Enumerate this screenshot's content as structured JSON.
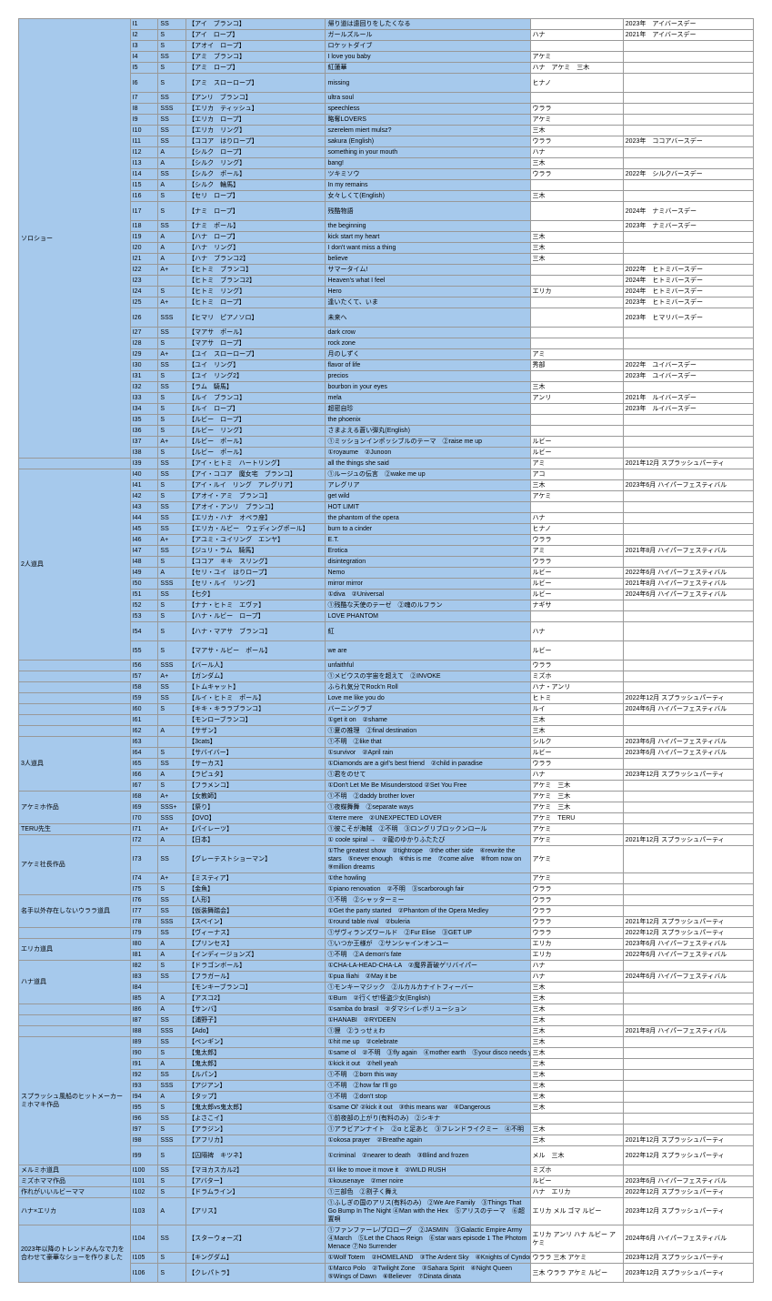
{
  "categories": [
    {
      "name": "ソロショー",
      "start": 0,
      "end": 38,
      "color": "#a6c9ec"
    },
    {
      "name": "2人道具",
      "start": 39,
      "end": 55,
      "color": "#a6c9ec"
    },
    {
      "name": "3人道具",
      "start": 62,
      "end": 67,
      "color": "#a6c9ec"
    },
    {
      "name": "アケミホ作品",
      "start": 67,
      "end": 70,
      "color": "#a6c9ec"
    },
    {
      "name": "TERU先生",
      "start": 70,
      "end": 71,
      "color": "#a6c9ec"
    },
    {
      "name": "アケミ社長作品",
      "start": 71,
      "end": 75,
      "color": "#a6c9ec"
    },
    {
      "name": "名手以外存在しないウララ道具",
      "start": 75,
      "end": 78,
      "color": "#a6c9ec"
    },
    {
      "name": "エリカ道具",
      "start": 79,
      "end": 81,
      "color": "#a6c9ec"
    },
    {
      "name": "ハナ道具",
      "start": 81,
      "end": 85,
      "color": "#a6c9ec"
    },
    {
      "name": "スプラッシュ風船のヒットメーカーミホマキ作品",
      "start": 88,
      "end": 99,
      "color": "#a6c9ec"
    },
    {
      "name": "メルミホ道具",
      "start": 99,
      "end": 100,
      "color": "#a6c9ec"
    },
    {
      "name": "ミズホママ作品",
      "start": 100,
      "end": 101,
      "color": "#a6c9ec"
    },
    {
      "name": "作れがいいルビーママ",
      "start": 101,
      "end": 102,
      "color": "#a6c9ec"
    },
    {
      "name": "ハナ×エリカ",
      "start": 102,
      "end": 103,
      "color": "#a6c9ec"
    },
    {
      "name": "2023年以降のトレンドみんなで力を合わせて豪華なショーを作りました",
      "start": 103,
      "end": 107,
      "color": "#a6c9ec"
    }
  ],
  "rows": [
    {
      "id": "I1",
      "rank": "SS",
      "act": "【アイ　ブランコ】",
      "song": "帰り道は遠回りをしたくなる",
      "perf": "",
      "date": "2023年　アイバースデー"
    },
    {
      "id": "I2",
      "rank": "S",
      "act": "【アイ　ロープ】",
      "song": "ガールズルール",
      "perf": "ハナ",
      "date": "2021年　アイバースデー"
    },
    {
      "id": "I3",
      "rank": "S",
      "act": "【アオイ　ロープ】",
      "song": "ロケットダイブ",
      "perf": "",
      "date": ""
    },
    {
      "id": "I4",
      "rank": "SS",
      "act": "【アミ　ブランコ】",
      "song": "I love you baby",
      "perf": "アケミ",
      "date": ""
    },
    {
      "id": "I5",
      "rank": "S",
      "act": "【アミ　ロープ】",
      "song": "紅蓮華",
      "perf": "ハナ　アケミ　三木",
      "date": ""
    },
    {
      "id": "I6",
      "rank": "S",
      "act": "【アミ　スローロープ】",
      "song": "missing",
      "perf": "ヒナノ",
      "date": "",
      "tall": true
    },
    {
      "id": "I7",
      "rank": "SS",
      "act": "【アンリ　ブランコ】",
      "song": "ultra soul",
      "perf": "",
      "date": ""
    },
    {
      "id": "I8",
      "rank": "SSS",
      "act": "【エリカ　ティッシュ】",
      "song": "speechless",
      "perf": "ウララ",
      "date": ""
    },
    {
      "id": "I9",
      "rank": "SS",
      "act": "【エリカ　ロープ】",
      "song": "略奪LOVERS",
      "perf": "アケミ",
      "date": ""
    },
    {
      "id": "I10",
      "rank": "SS",
      "act": "【エリカ　リング】",
      "song": "szerelem miert mulsz?",
      "perf": "三木",
      "date": ""
    },
    {
      "id": "I11",
      "rank": "SS",
      "act": "【ココア　はりロープ】",
      "song": "sakura (English)",
      "perf": "ウララ",
      "date": "2023年　ココアバースデー"
    },
    {
      "id": "I12",
      "rank": "A",
      "act": "【シルク　ロープ】",
      "song": "something in your mouth",
      "perf": "ハナ",
      "date": ""
    },
    {
      "id": "I13",
      "rank": "A",
      "act": "【シルク　リング】",
      "song": "bang!",
      "perf": "三木",
      "date": ""
    },
    {
      "id": "I14",
      "rank": "SS",
      "act": "【シルク　ポール】",
      "song": "ツキミソウ",
      "perf": "ウララ",
      "date": "2022年　シルクバースデー"
    },
    {
      "id": "I15",
      "rank": "A",
      "act": "【シルク　輪馬】",
      "song": "In my remains",
      "perf": "",
      "date": ""
    },
    {
      "id": "I16",
      "rank": "S",
      "act": "【セリ　ロープ】",
      "song": "女々しくて(English)",
      "perf": "三木",
      "date": ""
    },
    {
      "id": "I17",
      "rank": "S",
      "act": "【ナミ　ロープ】",
      "song": "残酷物語",
      "perf": "",
      "date": "2024年　ナミバースデー",
      "tall": true
    },
    {
      "id": "I18",
      "rank": "SS",
      "act": "【ナミ　ポール】",
      "song": "the beginning",
      "perf": "",
      "date": "2023年　ナミバースデー"
    },
    {
      "id": "I19",
      "rank": "A",
      "act": "【ハナ　ロープ】",
      "song": "kick start my heart",
      "perf": "三木",
      "date": ""
    },
    {
      "id": "I20",
      "rank": "A",
      "act": "【ハナ　リング】",
      "song": "I don't want miss a thing",
      "perf": "三木",
      "date": ""
    },
    {
      "id": "I21",
      "rank": "A",
      "act": "【ハナ　ブランコ2】",
      "song": "believe",
      "perf": "三木",
      "date": ""
    },
    {
      "id": "I22",
      "rank": "A+",
      "act": "【ヒトミ　ブランコ】",
      "song": "サマータイム!",
      "perf": "",
      "date": "2022年　ヒトミバースデー"
    },
    {
      "id": "I23",
      "rank": "",
      "act": "【ヒトミ　ブランコ2】",
      "song": "Heaven's what I feel",
      "perf": "",
      "date": "2024年　ヒトミバースデー"
    },
    {
      "id": "I24",
      "rank": "S",
      "act": "【ヒトミ　リング】",
      "song": "Hero",
      "perf": "エリカ",
      "date": "2024年　ヒトミバースデー"
    },
    {
      "id": "I25",
      "rank": "A+",
      "act": "【ヒトミ　ロープ】",
      "song": "逢いたくて、いま",
      "perf": "",
      "date": "2023年　ヒトミバースデー"
    },
    {
      "id": "I26",
      "rank": "SSS",
      "act": "【ヒマリ　ピアノソロ】",
      "song": "未来へ",
      "perf": "",
      "date": "2023年　ヒマリバースデー",
      "tall": true
    },
    {
      "id": "I27",
      "rank": "SS",
      "act": "【マアサ　ポール】",
      "song": "dark crow",
      "perf": "",
      "date": ""
    },
    {
      "id": "I28",
      "rank": "S",
      "act": "【マアサ　ロープ】",
      "song": "rock zone",
      "perf": "",
      "date": ""
    },
    {
      "id": "I29",
      "rank": "A+",
      "act": "【ユイ　スローロープ】",
      "song": "月のしずく",
      "perf": "アミ",
      "date": ""
    },
    {
      "id": "I30",
      "rank": "SS",
      "act": "【ユイ　リング】",
      "song": "flavor of life",
      "perf": "秀部",
      "date": "2022年　ユイバースデー"
    },
    {
      "id": "I31",
      "rank": "S",
      "act": "【ユイ　リング2】",
      "song": "precios",
      "perf": "",
      "date": "2023年　ユイバースデー"
    },
    {
      "id": "I32",
      "rank": "SS",
      "act": "【ラム　騎馬】",
      "song": "bourbon in your eyes",
      "perf": "三木",
      "date": ""
    },
    {
      "id": "I33",
      "rank": "S",
      "act": "【ルイ　ブランコ】",
      "song": "mela",
      "perf": "アンリ",
      "date": "2021年　ルイバースデー"
    },
    {
      "id": "I34",
      "rank": "S",
      "act": "【ルイ　ロープ】",
      "song": "超密自珍",
      "perf": "",
      "date": "2023年　ルイバースデー"
    },
    {
      "id": "I35",
      "rank": "S",
      "act": "【ルビー　ロープ】",
      "song": "the phoenix",
      "perf": "",
      "date": ""
    },
    {
      "id": "I36",
      "rank": "S",
      "act": "【ルビー　リング】",
      "song": "さまよえる蒼い弾丸(English)",
      "perf": "",
      "date": ""
    },
    {
      "id": "I37",
      "rank": "A+",
      "act": "【ルビー　ポール】",
      "song": "①ミッションインポッシブルのテーマ　②raise me up",
      "perf": "ルビー",
      "date": ""
    },
    {
      "id": "I38",
      "rank": "S",
      "act": "【ルビー　ポール】",
      "song": "①royaume　②Junoon",
      "perf": "ルビー",
      "date": ""
    },
    {
      "id": "I39",
      "rank": "SS",
      "act": "【アイ・ヒトミ　ハートリング】",
      "song": "all the things she said",
      "perf": "アミ",
      "date": "2021年12月 スプラッシュパーティ"
    },
    {
      "id": "I40",
      "rank": "SS",
      "act": "【アイ・ココア　魔女宅　ブランコ】",
      "song": "①ルージュの伝言　②wake me up",
      "perf": "アコ",
      "date": ""
    },
    {
      "id": "I41",
      "rank": "S",
      "act": "【アイ・ルイ　リング　アレグリア】",
      "song": "アレグリア",
      "perf": "三木",
      "date": "2023年6月 ハイパーフェスティバル"
    },
    {
      "id": "I42",
      "rank": "S",
      "act": "【アオイ・アミ　ブランコ】",
      "song": "get wild",
      "perf": "アケミ",
      "date": ""
    },
    {
      "id": "I43",
      "rank": "SS",
      "act": "【アオイ・アンリ　ブランコ】",
      "song": "HOT LIMIT",
      "perf": "",
      "date": ""
    },
    {
      "id": "I44",
      "rank": "SS",
      "act": "【エリカ・ハナ　オペラ座】",
      "song": "the phantom of the opera",
      "perf": "ハナ",
      "date": ""
    },
    {
      "id": "I45",
      "rank": "SS",
      "act": "【エリカ・ルビー　ウェディングポール】",
      "song": "burn to a cinder",
      "perf": "ヒナノ",
      "date": ""
    },
    {
      "id": "I46",
      "rank": "A+",
      "act": "【アユミ・ユイリング　エンヤ】",
      "song": "E.T.",
      "perf": "ウララ",
      "date": ""
    },
    {
      "id": "I47",
      "rank": "SS",
      "act": "【ジュリ・ラム　騎馬】",
      "song": "Erotica",
      "perf": "アミ",
      "date": "2021年8月 ハイパーフェスティバル"
    },
    {
      "id": "I48",
      "rank": "S",
      "act": "【ココア　キキ　スリング】",
      "song": "disintegration",
      "perf": "ウララ",
      "date": ""
    },
    {
      "id": "I49",
      "rank": "A",
      "act": "【セリ・ユイ　はりロープ】",
      "song": "Nemo",
      "perf": "ルビー",
      "date": "2022年6月 ハイパーフェスティバル"
    },
    {
      "id": "I50",
      "rank": "SSS",
      "act": "【セリ・ルイ　リング】",
      "song": "mirror mirror",
      "perf": "ルビー",
      "date": "2021年8月 ハイパーフェスティバル"
    },
    {
      "id": "I51",
      "rank": "SS",
      "act": "【七夕】",
      "song": "①diva　②Universal",
      "perf": "ルビー",
      "date": "2024年6月 ハイパーフェスティバル"
    },
    {
      "id": "I52",
      "rank": "S",
      "act": "【ナナ・ヒトミ　エヴァ】",
      "song": "①残酷な天使のテーゼ　②魂のルフラン",
      "perf": "ナギサ",
      "date": ""
    },
    {
      "id": "I53",
      "rank": "S",
      "act": "【ハナ・ルビー　ロープ】",
      "song": "LOVE PHANTOM",
      "perf": "",
      "date": ""
    },
    {
      "id": "I54",
      "rank": "S",
      "act": "【ハナ・マアサ　ブランコ】",
      "song": "紅",
      "perf": "ハナ",
      "date": "",
      "tall": true
    },
    {
      "id": "I55",
      "rank": "S",
      "act": "【マアサ・ルビー　ポール】",
      "song": "we are",
      "perf": "ルビー",
      "date": "",
      "tall": true
    },
    {
      "id": "I56",
      "rank": "SSS",
      "act": "【バール人】",
      "song": "unfaithful",
      "perf": "ウララ",
      "date": ""
    },
    {
      "id": "I57",
      "rank": "A+",
      "act": "【ガンダム】",
      "song": "①メビウスの宇宙を超えて　②INVOKE",
      "perf": "ミズホ",
      "date": ""
    },
    {
      "id": "I58",
      "rank": "SS",
      "act": "【トムキャット】",
      "song": "ふられ気分でRock'n Roll",
      "perf": "ハナ・アンリ",
      "date": ""
    },
    {
      "id": "I59",
      "rank": "SS",
      "act": "【ルイ・ヒトミ　ポール】",
      "song": "Love me like you do",
      "perf": "ヒトミ",
      "date": "2022年12月 スプラッシュパーティ"
    },
    {
      "id": "I60",
      "rank": "S",
      "act": "【キキ・キララブランコ】",
      "song": "バーニングラブ",
      "perf": "ルイ",
      "date": "2024年6月 ハイパーフェスティバル"
    },
    {
      "id": "I61",
      "rank": "",
      "act": "【モンローブランコ】",
      "song": "①get it on　②shame",
      "perf": "三木",
      "date": ""
    },
    {
      "id": "I62",
      "rank": "A",
      "act": "【サザン】",
      "song": "①夏の推理　②final destination",
      "perf": "三木",
      "date": ""
    },
    {
      "id": "I63",
      "rank": "",
      "act": "【3cats】",
      "song": "①不明　②like that",
      "perf": "シルク",
      "date": "2023年6月 ハイパーフェスティバル"
    },
    {
      "id": "I64",
      "rank": "S",
      "act": "【サバイバー】",
      "song": "①survivor　②April rain",
      "perf": "ルビー",
      "date": "2023年6月 ハイパーフェスティバル"
    },
    {
      "id": "I65",
      "rank": "SS",
      "act": "【サーカス】",
      "song": "①Diamonds are a girl's best friend　②child in paradise",
      "perf": "ウララ",
      "date": ""
    },
    {
      "id": "I66",
      "rank": "A",
      "act": "【ラピュタ】",
      "song": "①君をのせて",
      "perf": "ハナ",
      "date": "2023年12月 スプラッシュパーティ"
    },
    {
      "id": "I67",
      "rank": "S",
      "act": "【フラメンコ】",
      "song": "①Don't Let Me Be Misunderstood ②Set You Free",
      "perf": "アケミ　三木",
      "date": ""
    },
    {
      "id": "I68",
      "rank": "A+",
      "act": "【女教師】",
      "song": "①不明　②daddy brother lover",
      "perf": "アケミ　三木",
      "date": ""
    },
    {
      "id": "I69",
      "rank": "SSS+",
      "act": "【祭り】",
      "song": "①夜蝶舞舞　②separate ways",
      "perf": "アケミ　三木",
      "date": ""
    },
    {
      "id": "I70",
      "rank": "SSS",
      "act": "【OVO】",
      "song": "①terre mere　②UNEXPECTED LOVER",
      "perf": "アケミ　TERU",
      "date": ""
    },
    {
      "id": "I71",
      "rank": "A+",
      "act": "【パイレーツ】",
      "song": "①彼こそが海賊　②不明　③ロングリブロックンロール",
      "perf": "アケミ",
      "date": ""
    },
    {
      "id": "I72",
      "rank": "A",
      "act": "【日本】",
      "song": "① coole spiral →　②龍のゆかりふたたび",
      "perf": "アケミ",
      "date": "2021年12月 スプラッシュパーティ"
    },
    {
      "id": "I73",
      "rank": "SS",
      "act": "【グレーテストショーマン】",
      "song": "①The greatest show　②tightrope　③the other side　④rewrite the stars　⑤never enough　⑥this is me　⑦come alive　⑧from now on　⑨million dreams",
      "perf": "アケミ",
      "date": "",
      "tall": true
    },
    {
      "id": "I74",
      "rank": "A+",
      "act": "【ミスティア】",
      "song": "①the howling",
      "perf": "アケミ",
      "date": ""
    },
    {
      "id": "I75",
      "rank": "S",
      "act": "【金魚】",
      "song": "①piano renovation　②不明　③scarborough fair",
      "perf": "ウララ",
      "date": ""
    },
    {
      "id": "I76",
      "rank": "SS",
      "act": "【人形】",
      "song": "①不明　②シャッターミー",
      "perf": "ウララ",
      "date": ""
    },
    {
      "id": "I77",
      "rank": "SS",
      "act": "【仮装舞踏会】",
      "song": "①Get the party started　②Phantom of the Opera Medley",
      "perf": "ウララ",
      "date": ""
    },
    {
      "id": "I78",
      "rank": "SSS",
      "act": "【スペイン】",
      "song": "①round table rival　②buleria",
      "perf": "ウララ",
      "date": "2021年12月 スプラッシュパーティ"
    },
    {
      "id": "I79",
      "rank": "SS",
      "act": "【ヴィーナス】",
      "song": "①ザヴィランズワールド　②Fur Elise　③GET UP",
      "perf": "ウララ",
      "date": "2022年12月 スプラッシュパーティ"
    },
    {
      "id": "I80",
      "rank": "A",
      "act": "【プリンセス】",
      "song": "①いつか王様が　②サンシャインオンユー",
      "perf": "エリカ",
      "date": "2023年6月 ハイパーフェスティバル"
    },
    {
      "id": "I81",
      "rank": "A",
      "act": "【インディージョンズ】",
      "song": "①不明　②A demon's fate",
      "perf": "エリカ",
      "date": "2022年6月 ハイパーフェスティバル"
    },
    {
      "id": "I82",
      "rank": "S",
      "act": "【ドラゴンボール】",
      "song": "①CHA-LA-HEAD-CHA-LA　②魔界蒼破ゲリバイパー",
      "perf": "ハナ",
      "date": ""
    },
    {
      "id": "I83",
      "rank": "SS",
      "act": "【フラガール】",
      "song": "①pua Iliahi　②May it be",
      "perf": "ハナ",
      "date": "2024年6月 ハイパーフェスティバル"
    },
    {
      "id": "I84",
      "rank": "",
      "act": "【モンキーブランコ】",
      "song": "①モンキーマジック　②ルカルカナイトフィーバー",
      "perf": "三木",
      "date": ""
    },
    {
      "id": "I85",
      "rank": "A",
      "act": "【アスコ2】",
      "song": "①Burn　②行くぜ!怪盗少女(English)",
      "perf": "三木",
      "date": ""
    },
    {
      "id": "I86",
      "rank": "A",
      "act": "【サンバ】",
      "song": "①samba do brasil　②ダマシイレボリューション",
      "perf": "三木",
      "date": ""
    },
    {
      "id": "I87",
      "rank": "SS",
      "act": "【浦野子】",
      "song": "①HANABI　②RYDEEN",
      "perf": "三木",
      "date": ""
    },
    {
      "id": "I88",
      "rank": "SSS",
      "act": "【Ado】",
      "song": "①狸　②うっせぇわ",
      "perf": "三木",
      "date": "2021年8月 ハイパーフェスティバル"
    },
    {
      "id": "I89",
      "rank": "SS",
      "act": "【ペンギン】",
      "song": "①hit me up　②celebrate",
      "perf": "三木",
      "date": ""
    },
    {
      "id": "I90",
      "rank": "S",
      "act": "【鬼太郎】",
      "song": "①same ol　②不明　③fly again　④mother earth　⑤your disco needs you",
      "perf": "三木",
      "date": ""
    },
    {
      "id": "I91",
      "rank": "A",
      "act": "【鬼太郎】",
      "song": "①kick it out　②hell yeah",
      "perf": "三木",
      "date": ""
    },
    {
      "id": "I92",
      "rank": "SS",
      "act": "【ルパン】",
      "song": "①不明　②born this way",
      "perf": "三木",
      "date": ""
    },
    {
      "id": "I93",
      "rank": "SSS",
      "act": "【アジアン】",
      "song": "①不明　②how far I'll go",
      "perf": "三木",
      "date": ""
    },
    {
      "id": "I94",
      "rank": "A",
      "act": "【タップ】",
      "song": "①不明　②don't stop",
      "perf": "三木",
      "date": ""
    },
    {
      "id": "I95",
      "rank": "S",
      "act": "【鬼太郎vs鬼太郎】",
      "song": "①same Ol' ②kick it out　③this means war　④Dangerous",
      "perf": "三木",
      "date": ""
    },
    {
      "id": "I96",
      "rank": "SS",
      "act": "【よさこイ】",
      "song": "①前夜部の上がり(有料のみ)　②シキナ",
      "perf": "",
      "date": ""
    },
    {
      "id": "I97",
      "rank": "S",
      "act": "【アラジン】",
      "song": "①アラビアンナイト　②α と足あと　③フレンドライクミー　④不明　⑤a whole new world",
      "perf": "三木",
      "date": ""
    },
    {
      "id": "I98",
      "rank": "SSS",
      "act": "【アフリカ】",
      "song": "①okosa prayer　②Breathe again",
      "perf": "三木",
      "date": "2021年12月 スプラッシュパーティ"
    },
    {
      "id": "I99",
      "rank": "S",
      "act": "【囚隔裨　キツネ】",
      "song": "①criminal　②nearer to death　③Blind and frozen",
      "perf": "メル　三木",
      "date": "2022年12月 スプラッシュパーティ",
      "tall": true
    },
    {
      "id": "I100",
      "rank": "SS",
      "act": "【マヨカスカル2】",
      "song": "①I like to move it move it　②WILD RUSH",
      "perf": "ミズホ",
      "date": ""
    },
    {
      "id": "I101",
      "rank": "S",
      "act": "【アバター】",
      "song": "①kousenaye　②mer noire",
      "perf": "ルビー",
      "date": "2023年6月 ハイパーフェスティバル"
    },
    {
      "id": "I102",
      "rank": "S",
      "act": "【ドラムライン】",
      "song": "①三部色　②割子く舞え",
      "perf": "ハナ　エリカ",
      "date": "2022年12月 スプラッシュパーティ"
    },
    {
      "id": "I103",
      "rank": "A",
      "act": "【アリス】",
      "song": "①ふしぎの国のアリス(有料のみ)　②We Are Family　③Things That Go Bump In The Night ④Man with the Hex　⑤アリスのテーマ　⑥超置唄",
      "perf": "エリカ メル ゴマ ルビー",
      "date": "2023年12月 スプラッシュパーティ",
      "tall": true
    },
    {
      "id": "I104",
      "rank": "SS",
      "act": "【スターウォーズ】",
      "song": "①ファンファーレ/プロローグ　②JASMIN　③Galactic Empire Army ④March　⑤Let the Chaos Reign　⑥star wars episode 1 The Photom Menace ⑦No Surrender",
      "perf": "エリカ アンリ ハナ ルビー アケミ",
      "date": "2024年6月 ハイパーフェスティバル",
      "tall": true
    },
    {
      "id": "I105",
      "rank": "S",
      "act": "【キングダム】",
      "song": "①Wolf Totem　②HOMELAND　③The Ardent Sky　④Knights of Cyndonia",
      "perf": "ウララ 三木 アケミ",
      "date": "2023年12月 スプラッシュパーティ"
    },
    {
      "id": "I106",
      "rank": "S",
      "act": "【クレパトラ】",
      "song": "①Marco Polo　②Twilight Zone　③Sahara Spirit　④Night Queen ⑤Wings of Dawn　⑥Believer　⑦Dinata dinata",
      "perf": "三木 ウララ アケミ ルビー",
      "date": "2023年12月 スプラッシュパーティ",
      "tall": true
    }
  ]
}
